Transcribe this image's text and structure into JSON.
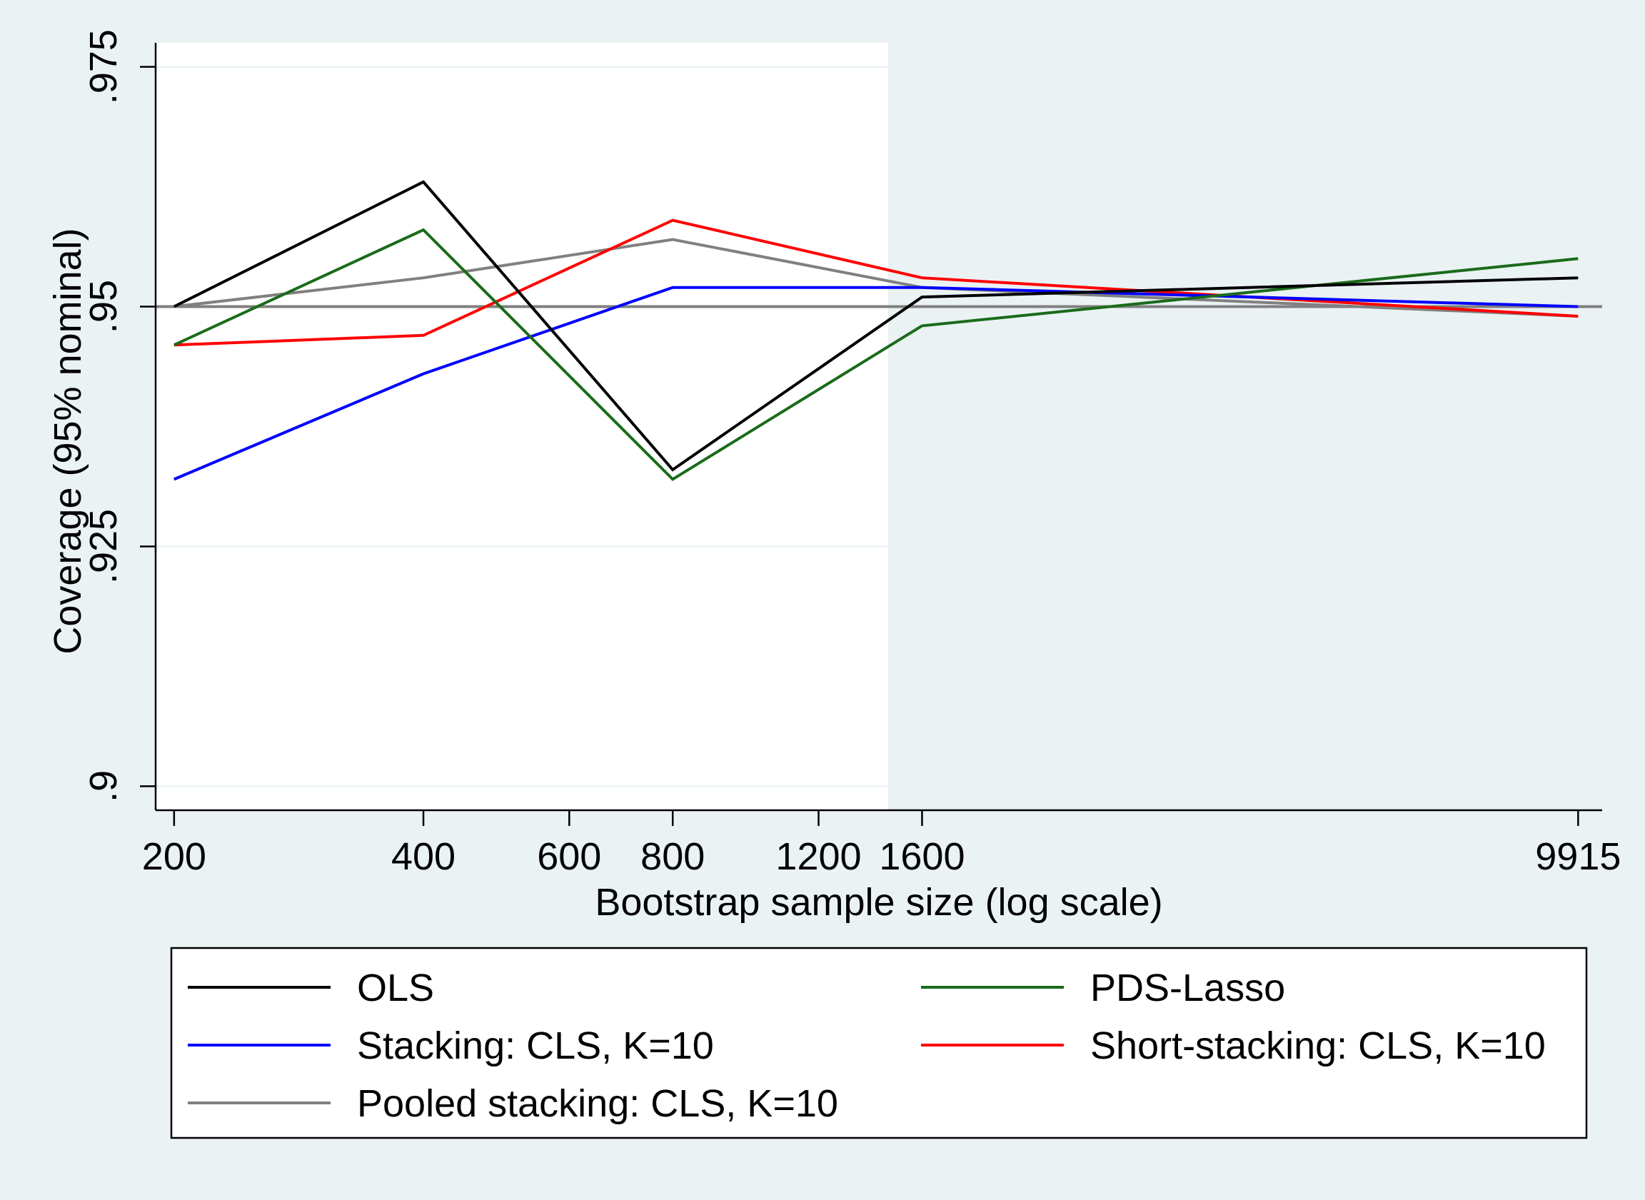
{
  "chart_data": {
    "type": "line",
    "title": "",
    "xlabel": "Bootstrap sample size (log scale)",
    "ylabel": "Coverage (95% nominal)",
    "x_scale": "log",
    "xticks": [
      {
        "value": 200,
        "label": "200"
      },
      {
        "value": 400,
        "label": "400"
      },
      {
        "value": 600,
        "label": "600"
      },
      {
        "value": 800,
        "label": "800"
      },
      {
        "value": 1200,
        "label": "1200"
      },
      {
        "value": 1600,
        "label": "1600"
      },
      {
        "value": 9915,
        "label": "9915"
      }
    ],
    "yticks": [
      {
        "value": 0.9,
        "label": ".9"
      },
      {
        "value": 0.925,
        "label": ".925"
      },
      {
        "value": 0.95,
        "label": ".95"
      },
      {
        "value": 0.975,
        "label": ".975"
      }
    ],
    "xlim": [
      190,
      10600
    ],
    "ylim": [
      0.8975,
      0.9775
    ],
    "reference_line": {
      "y": 0.95,
      "color": "#808080"
    },
    "grid": true,
    "legend_position": "bottom",
    "x": [
      200,
      400,
      800,
      1600,
      9915
    ],
    "series": [
      {
        "name": "OLS",
        "color": "#000000",
        "values": [
          0.95,
          0.963,
          0.933,
          0.951,
          0.953
        ]
      },
      {
        "name": "PDS-Lasso",
        "color": "#1a6b1a",
        "values": [
          0.946,
          0.958,
          0.932,
          0.948,
          0.955
        ]
      },
      {
        "name": "Stacking: CLS, K=10",
        "color": "#0000ff",
        "values": [
          0.932,
          0.943,
          0.952,
          0.952,
          0.95
        ]
      },
      {
        "name": "Short-stacking: CLS, K=10",
        "color": "#ff0000",
        "values": [
          0.946,
          0.947,
          0.959,
          0.953,
          0.949
        ]
      },
      {
        "name": "Pooled stacking: CLS, K=10",
        "color": "#808080",
        "values": [
          0.95,
          0.953,
          0.957,
          0.952,
          0.949
        ]
      }
    ]
  }
}
